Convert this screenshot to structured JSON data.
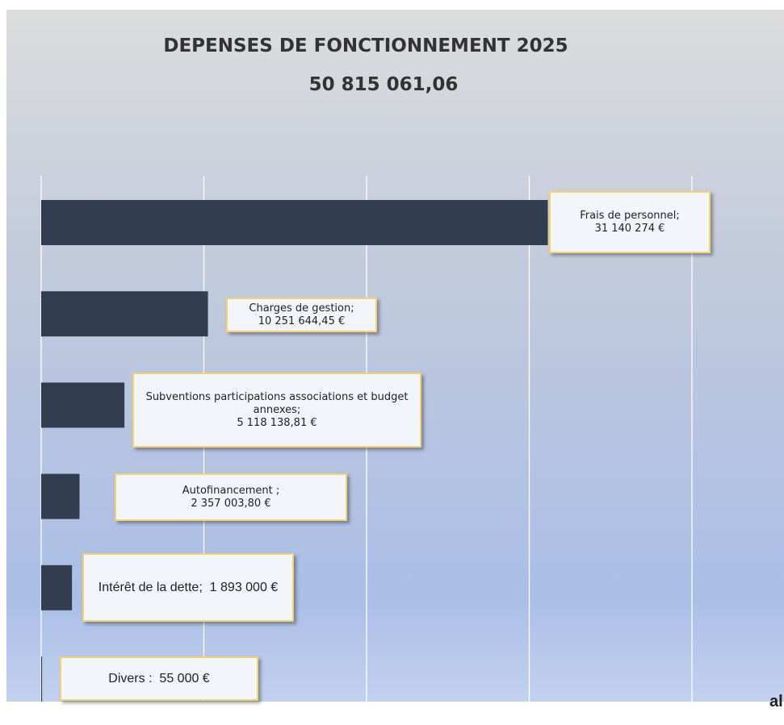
{
  "chart_data": {
    "type": "barh",
    "title": "DEPENSES DE FONCTIONNEMENT 2025",
    "subtitle": "50 815 061,06",
    "categories": [
      "Frais de personnel;",
      "Charges de gestion;",
      "Subventions participations associations et budget annexes;",
      "Autofinancement ;",
      "Intérêt de la dette;",
      "Divers :"
    ],
    "values": [
      31140274,
      10251644.45,
      5118138.81,
      2357003.8,
      1893000,
      55000
    ],
    "value_labels": [
      "31 140 274 €",
      "10 251 644,45 €",
      "5 118 138,81 €",
      "2 357 003,80 €",
      "1 893 000 €",
      "55 000 €"
    ],
    "color": "#323d4f",
    "xlim": [
      0,
      40000000
    ],
    "xticks": [
      0,
      10000000,
      20000000,
      30000000,
      40000000
    ],
    "grid": true,
    "fragment": "al"
  }
}
